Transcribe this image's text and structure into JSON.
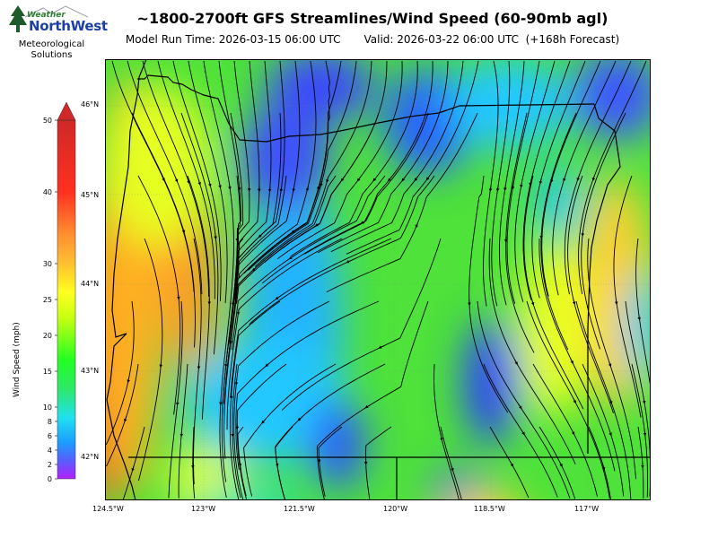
{
  "logo": {
    "word_top": "Weather",
    "word_main": "NorthWest",
    "subtitle_line1": "Meteorological",
    "subtitle_line2": "Solutions"
  },
  "header": {
    "title": "~1800-2700ft GFS Streamlines/Wind Speed (60-90mb agl)",
    "model_run": "Model Run Time: 2026-03-15 06:00 UTC",
    "valid": "Valid: 2026-03-22 06:00 UTC  (+168h Forecast)"
  },
  "colorbar": {
    "label": "Wind Speed (mph)",
    "ticks": [
      "0",
      "2",
      "4",
      "6",
      "8",
      "10",
      "15",
      "20",
      "25",
      "30",
      "40",
      "50"
    ]
  },
  "map": {
    "lat_labels": [
      "46°N",
      "45°N",
      "44°N",
      "43°N",
      "42°N"
    ],
    "lon_labels": [
      "124.5°W",
      "123°W",
      "121.5°W",
      "120°W",
      "118.5°W",
      "117°W"
    ]
  }
}
